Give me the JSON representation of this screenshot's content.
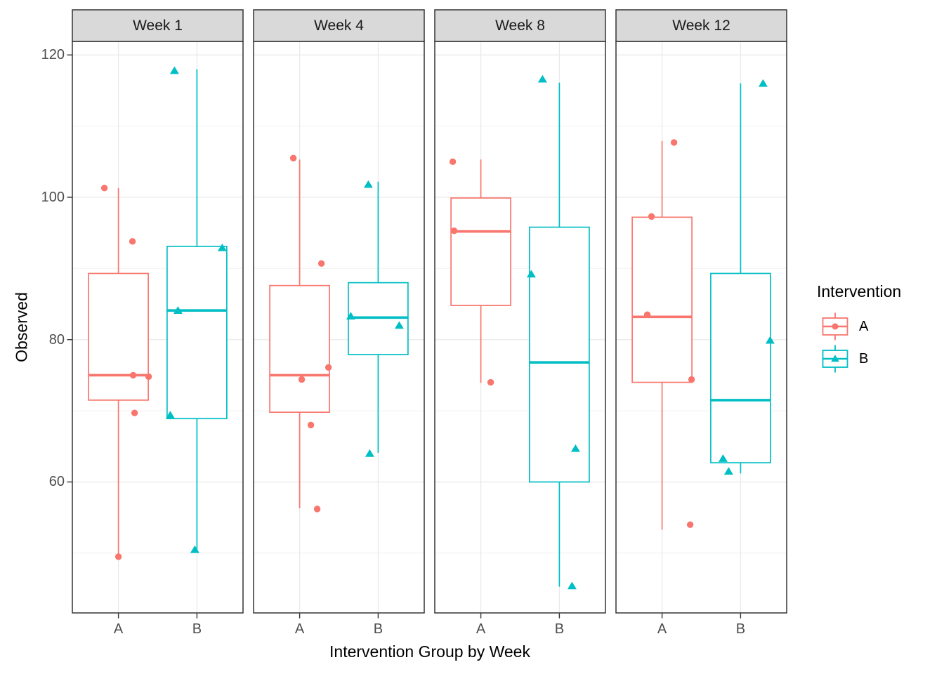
{
  "chart_data": {
    "type": "boxplot",
    "title": "",
    "xlabel": "Intervention Group by Week",
    "ylabel": "Observed",
    "ylim": [
      41.6,
      121.9
    ],
    "y_ticks": [
      60,
      80,
      100,
      120
    ],
    "y_minor_ticks": [
      50,
      70,
      90,
      110
    ],
    "x_categories": [
      "A",
      "B"
    ],
    "grid": "on",
    "legend": {
      "title": "Intervention",
      "position": "right",
      "items": [
        {
          "label": "A",
          "color": "#F8766D",
          "marker": "circle"
        },
        {
          "label": "B",
          "color": "#00BFC4",
          "marker": "triangle"
        }
      ]
    },
    "facets": [
      {
        "label": "Week 1",
        "groups": [
          {
            "name": "A",
            "color": "#F8766D",
            "marker": "circle",
            "box": {
              "q1": 71.5,
              "median": 75.0,
              "q3": 89.3,
              "whisker_low": 49.5,
              "whisker_high": 101.3
            },
            "points": [
              {
                "value": 101.3,
                "dx": -20
              },
              {
                "value": 93.8,
                "dx": 20
              },
              {
                "value": 75.0,
                "dx": 21
              },
              {
                "value": 74.8,
                "dx": 43
              },
              {
                "value": 69.7,
                "dx": 23
              },
              {
                "value": 49.5,
                "dx": 0
              }
            ]
          },
          {
            "name": "B",
            "color": "#00BFC4",
            "marker": "triangle",
            "box": {
              "q1": 68.9,
              "median": 84.1,
              "q3": 93.1,
              "whisker_low": 50.5,
              "whisker_high": 118.0
            },
            "points": [
              {
                "value": 117.8,
                "dx": -32
              },
              {
                "value": 92.9,
                "dx": 36
              },
              {
                "value": 84.1,
                "dx": -27
              },
              {
                "value": 69.4,
                "dx": -38
              },
              {
                "value": 50.5,
                "dx": -3
              }
            ]
          }
        ]
      },
      {
        "label": "Week 4",
        "groups": [
          {
            "name": "A",
            "color": "#F8766D",
            "marker": "circle",
            "box": {
              "q1": 69.8,
              "median": 75.0,
              "q3": 87.6,
              "whisker_low": 56.3,
              "whisker_high": 105.3
            },
            "points": [
              {
                "value": 105.5,
                "dx": -9
              },
              {
                "value": 90.7,
                "dx": 31
              },
              {
                "value": 76.1,
                "dx": 41
              },
              {
                "value": 74.4,
                "dx": 3
              },
              {
                "value": 68.0,
                "dx": 16
              },
              {
                "value": 56.2,
                "dx": 25
              }
            ]
          },
          {
            "name": "B",
            "color": "#00BFC4",
            "marker": "triangle",
            "box": {
              "q1": 77.9,
              "median": 83.1,
              "q3": 88.0,
              "whisker_low": 64.1,
              "whisker_high": 102.2
            },
            "points": [
              {
                "value": 101.8,
                "dx": -14
              },
              {
                "value": 83.3,
                "dx": -39
              },
              {
                "value": 82.0,
                "dx": 30
              },
              {
                "value": 64.0,
                "dx": -12
              }
            ]
          }
        ]
      },
      {
        "label": "Week 8",
        "groups": [
          {
            "name": "A",
            "color": "#F8766D",
            "marker": "circle",
            "box": {
              "q1": 84.8,
              "median": 95.2,
              "q3": 99.9,
              "whisker_low": 73.9,
              "whisker_high": 105.3
            },
            "points": [
              {
                "value": 105.0,
                "dx": -40
              },
              {
                "value": 95.3,
                "dx": -38
              },
              {
                "value": 74.0,
                "dx": 14
              }
            ]
          },
          {
            "name": "B",
            "color": "#00BFC4",
            "marker": "triangle",
            "box": {
              "q1": 60.0,
              "median": 76.8,
              "q3": 95.8,
              "whisker_low": 45.3,
              "whisker_high": 116.1
            },
            "points": [
              {
                "value": 116.6,
                "dx": -24
              },
              {
                "value": 89.2,
                "dx": -40
              },
              {
                "value": 64.7,
                "dx": 23
              },
              {
                "value": 45.4,
                "dx": 18
              }
            ]
          }
        ]
      },
      {
        "label": "Week 12",
        "groups": [
          {
            "name": "A",
            "color": "#F8766D",
            "marker": "circle",
            "box": {
              "q1": 74.0,
              "median": 83.2,
              "q3": 97.2,
              "whisker_low": 53.3,
              "whisker_high": 107.9
            },
            "points": [
              {
                "value": 107.7,
                "dx": 17
              },
              {
                "value": 97.3,
                "dx": -15
              },
              {
                "value": 83.5,
                "dx": -21
              },
              {
                "value": 74.4,
                "dx": 42
              },
              {
                "value": 54.0,
                "dx": 40
              }
            ]
          },
          {
            "name": "B",
            "color": "#00BFC4",
            "marker": "triangle",
            "box": {
              "q1": 62.7,
              "median": 71.5,
              "q3": 89.3,
              "whisker_low": 61.2,
              "whisker_high": 116.0
            },
            "points": [
              {
                "value": 116.0,
                "dx": 32
              },
              {
                "value": 79.9,
                "dx": 42
              },
              {
                "value": 63.3,
                "dx": -25
              },
              {
                "value": 61.5,
                "dx": -17
              }
            ]
          }
        ]
      }
    ]
  },
  "colors": {
    "group_a": "#F8766D",
    "group_b": "#00BFC4",
    "strip_fill": "#D9D9D9",
    "panel_border": "#333333",
    "grid_major": "#E9E9E9",
    "grid_minor": "#F2F2F2",
    "axis_text": "#4D4D4D"
  }
}
